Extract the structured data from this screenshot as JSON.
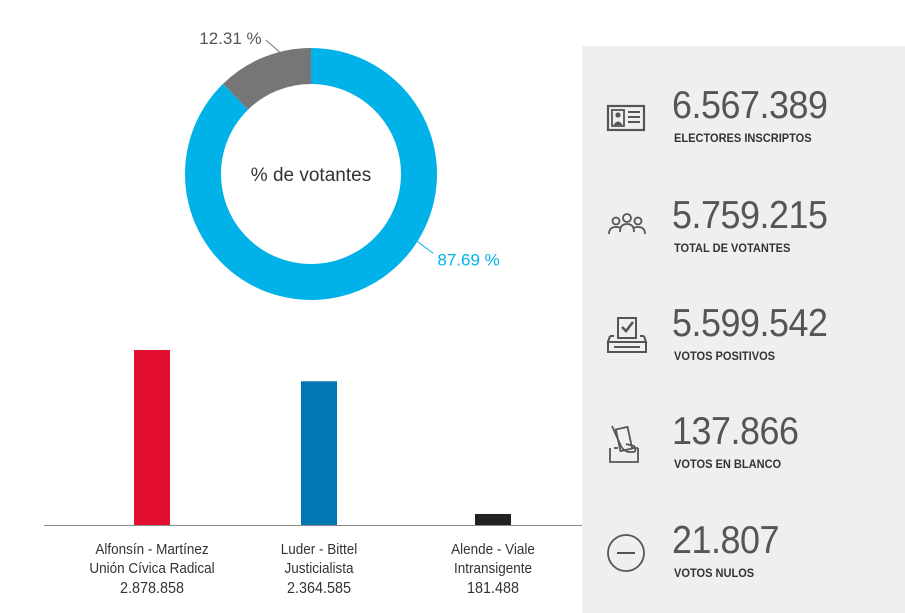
{
  "chart_data": [
    {
      "type": "pie",
      "title": "% de votantes",
      "slices": [
        {
          "label": "87.69 %",
          "value": 87.69,
          "color": "#00b2e8"
        },
        {
          "label": "12.31 %",
          "value": 12.31,
          "color": "#767676"
        }
      ]
    },
    {
      "type": "bar",
      "categories": [
        {
          "line1": "Alfonsín - Martínez",
          "line2": "Unión Cívica Radical",
          "votes_label": "2.878.858"
        },
        {
          "line1": "Luder - Bittel",
          "line2": "Justicialista",
          "votes_label": "2.364.585"
        },
        {
          "line1": "Alende - Viale",
          "line2": "Intransigente",
          "votes_label": "181.488"
        }
      ],
      "values": [
        2878858,
        2364585,
        181488
      ],
      "colors": [
        "#e30d30",
        "#0078b4",
        "#222222"
      ]
    }
  ],
  "stats": [
    {
      "icon": "id-card-icon",
      "value": "6.567.389",
      "label": "ELECTORES INSCRIPTOS"
    },
    {
      "icon": "people-icon",
      "value": "5.759.215",
      "label": "TOTAL DE VOTANTES"
    },
    {
      "icon": "ballot-box-icon",
      "value": "5.599.542",
      "label": "VOTOS POSITIVOS"
    },
    {
      "icon": "blank-vote-icon",
      "value": "137.866",
      "label": "VOTOS EN BLANCO"
    },
    {
      "icon": "null-vote-icon",
      "value": "21.807",
      "label": "VOTOS NULOS"
    }
  ]
}
